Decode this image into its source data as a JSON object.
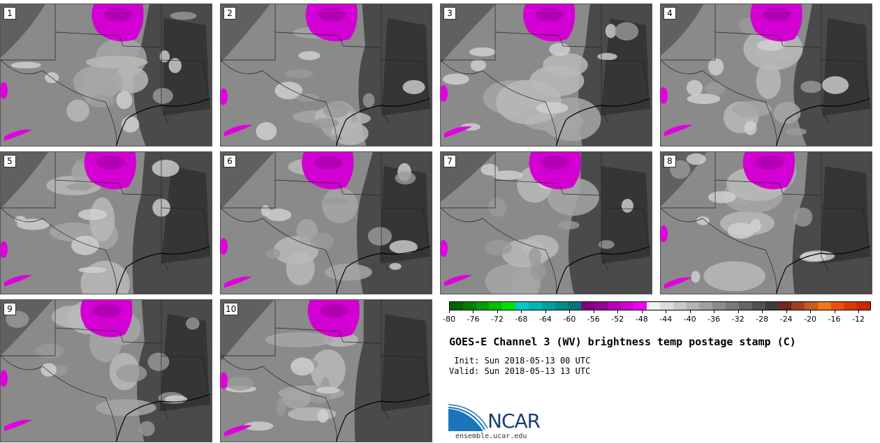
{
  "panels": [
    {
      "label": "1",
      "seed": 11
    },
    {
      "label": "2",
      "seed": 23
    },
    {
      "label": "3",
      "seed": 37
    },
    {
      "label": "4",
      "seed": 41
    },
    {
      "label": "5",
      "seed": 53
    },
    {
      "label": "6",
      "seed": 67
    },
    {
      "label": "7",
      "seed": 71
    },
    {
      "label": "8",
      "seed": 83
    },
    {
      "label": "9",
      "seed": 97
    },
    {
      "label": "10",
      "seed": 101
    }
  ],
  "colorbar": {
    "colors": [
      "#006400",
      "#008000",
      "#00a000",
      "#00c000",
      "#00e000",
      "#00c8c8",
      "#00b4b4",
      "#00a0a0",
      "#008c8c",
      "#007878",
      "#800080",
      "#960096",
      "#b400b4",
      "#d200d2",
      "#f000f0",
      "#f0f0f0",
      "#dcdcdc",
      "#c8c8c8",
      "#b4b4b4",
      "#a0a0a0",
      "#8c8c8c",
      "#787878",
      "#646464",
      "#505050",
      "#3c3c3c",
      "#6e2a1a",
      "#a0401f",
      "#c85a1e",
      "#f07814",
      "#e8500a",
      "#d83a00",
      "#c82800"
    ],
    "ticks": [
      "-80",
      "-76",
      "-72",
      "-68",
      "-64",
      "-60",
      "-56",
      "-52",
      "-48",
      "-44",
      "-40",
      "-36",
      "-32",
      "-28",
      "-24",
      "-20",
      "-16",
      "-12"
    ]
  },
  "title": "GOES-E Channel 3 (WV) brightness temp postage stamp (C)",
  "init": " Init: Sun 2018-05-13 00 UTC",
  "valid": "Valid: Sun 2018-05-13 13 UTC",
  "logo": {
    "name": "NCAR",
    "url": "ensemble.ucar.edu"
  }
}
